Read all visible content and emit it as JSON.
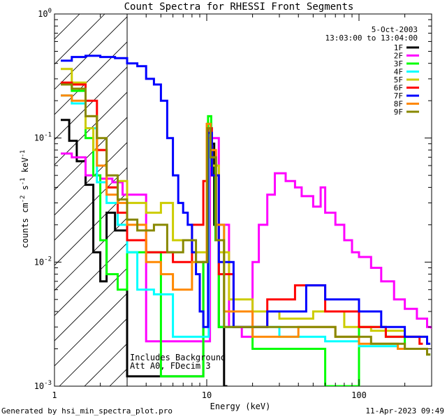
{
  "chart_data": {
    "type": "line",
    "title": "Count Spectra for RHESSI Front Segments",
    "xlabel": "Energy (keV)",
    "ylabel": "counts cm-2 s-1 keV-1",
    "xscale": "log",
    "yscale": "log",
    "xlim": [
      1,
      300
    ],
    "ylim": [
      0.001,
      1
    ],
    "x_ticks": [
      {
        "value": 1,
        "label": "1"
      },
      {
        "value": 10,
        "label": "10"
      },
      {
        "value": 100,
        "label": "100"
      }
    ],
    "y_ticks": [
      {
        "value": 1,
        "base": "10",
        "exp": "0"
      },
      {
        "value": 0.1,
        "base": "10",
        "exp": "-1"
      },
      {
        "value": 0.01,
        "base": "10",
        "exp": "-2"
      },
      {
        "value": 0.001,
        "base": "10",
        "exp": "-3"
      }
    ],
    "hatched_region_keV": [
      1,
      3
    ],
    "date": "5-Oct-2003",
    "time_range": "13:03:00 to 13:04:00",
    "annotations": [
      "Includes Background",
      "Att A0, FDecim 3"
    ],
    "series": [
      {
        "name": "1F",
        "color": "#000000",
        "points": [
          [
            1.1,
            0.14
          ],
          [
            1.25,
            0.095
          ],
          [
            1.4,
            0.065
          ],
          [
            1.6,
            0.042
          ],
          [
            1.8,
            0.012
          ],
          [
            2.0,
            0.007
          ],
          [
            2.2,
            0.025
          ],
          [
            2.5,
            0.018
          ],
          [
            3.0,
            0.0012
          ],
          [
            9.5,
            0.01
          ],
          [
            10.1,
            0.13
          ],
          [
            10.6,
            0.09
          ],
          [
            11.2,
            0.02
          ],
          [
            12.0,
            0.003
          ],
          [
            13,
            0.001
          ]
        ]
      },
      {
        "name": "2F",
        "color": "#ff00ff",
        "points": [
          [
            1.1,
            0.075
          ],
          [
            1.3,
            0.07
          ],
          [
            1.6,
            0.05
          ],
          [
            2.0,
            0.047
          ],
          [
            2.4,
            0.044
          ],
          [
            2.8,
            0.035
          ],
          [
            4,
            0.0023
          ],
          [
            10.5,
            0.1
          ],
          [
            12,
            0.02
          ],
          [
            14,
            0.003
          ],
          [
            17,
            0.0025
          ],
          [
            20,
            0.01
          ],
          [
            22,
            0.02
          ],
          [
            25,
            0.035
          ],
          [
            28,
            0.052
          ],
          [
            33,
            0.045
          ],
          [
            38,
            0.04
          ],
          [
            42,
            0.034
          ],
          [
            50,
            0.028
          ],
          [
            56,
            0.04
          ],
          [
            60,
            0.025
          ],
          [
            70,
            0.02
          ],
          [
            80,
            0.015
          ],
          [
            90,
            0.012
          ],
          [
            100,
            0.011
          ],
          [
            120,
            0.009
          ],
          [
            140,
            0.007
          ],
          [
            170,
            0.005
          ],
          [
            200,
            0.0042
          ],
          [
            240,
            0.0035
          ],
          [
            280,
            0.003
          ],
          [
            300,
            0.0029
          ]
        ]
      },
      {
        "name": "3F",
        "color": "#00ff00",
        "points": [
          [
            1.1,
            0.27
          ],
          [
            1.3,
            0.24
          ],
          [
            1.6,
            0.1
          ],
          [
            1.8,
            0.05
          ],
          [
            2.0,
            0.015
          ],
          [
            2.2,
            0.008
          ],
          [
            2.6,
            0.006
          ],
          [
            3.0,
            0.012
          ],
          [
            5.0,
            0.0012
          ],
          [
            9.5,
            0.01
          ],
          [
            10.2,
            0.15
          ],
          [
            10.7,
            0.06
          ],
          [
            11.4,
            0.015
          ],
          [
            12,
            0.003
          ],
          [
            20,
            0.002
          ],
          [
            40,
            0.002
          ],
          [
            60,
            0.001
          ],
          [
            100,
            0.003
          ],
          [
            150,
            0.0025
          ],
          [
            200,
            0.002
          ],
          [
            280,
            0.0018
          ]
        ]
      },
      {
        "name": "4F",
        "color": "#00ffff",
        "points": [
          [
            1.1,
            0.22
          ],
          [
            1.3,
            0.19
          ],
          [
            1.6,
            0.12
          ],
          [
            1.9,
            0.044
          ],
          [
            2.2,
            0.03
          ],
          [
            2.6,
            0.02
          ],
          [
            3.0,
            0.012
          ],
          [
            3.5,
            0.006
          ],
          [
            4.5,
            0.0055
          ],
          [
            6,
            0.0025
          ],
          [
            10.3,
            0.12
          ],
          [
            10.8,
            0.07
          ],
          [
            11.5,
            0.02
          ],
          [
            13,
            0.003
          ],
          [
            30,
            0.0025
          ],
          [
            60,
            0.0023
          ],
          [
            100,
            0.0021
          ],
          [
            180,
            0.002
          ],
          [
            280,
            0.0018
          ]
        ]
      },
      {
        "name": "5F",
        "color": "#cccc00",
        "points": [
          [
            1.1,
            0.36
          ],
          [
            1.3,
            0.28
          ],
          [
            1.6,
            0.12
          ],
          [
            1.8,
            0.08
          ],
          [
            2.2,
            0.04
          ],
          [
            2.6,
            0.045
          ],
          [
            3.0,
            0.03
          ],
          [
            4,
            0.025
          ],
          [
            5,
            0.03
          ],
          [
            6,
            0.015
          ],
          [
            8,
            0.012
          ],
          [
            10.2,
            0.1
          ],
          [
            10.8,
            0.06
          ],
          [
            12,
            0.012
          ],
          [
            14,
            0.005
          ],
          [
            20,
            0.004
          ],
          [
            30,
            0.0035
          ],
          [
            50,
            0.004
          ],
          [
            80,
            0.003
          ],
          [
            120,
            0.0028
          ],
          [
            200,
            0.0025
          ],
          [
            280,
            0.0022
          ]
        ]
      },
      {
        "name": "6F",
        "color": "#ff0000",
        "points": [
          [
            1.1,
            0.28
          ],
          [
            1.3,
            0.27
          ],
          [
            1.6,
            0.2
          ],
          [
            1.9,
            0.08
          ],
          [
            2.2,
            0.04
          ],
          [
            2.6,
            0.025
          ],
          [
            3.0,
            0.015
          ],
          [
            4,
            0.012
          ],
          [
            6,
            0.01
          ],
          [
            8,
            0.02
          ],
          [
            9.5,
            0.045
          ],
          [
            10.2,
            0.12
          ],
          [
            10.8,
            0.05
          ],
          [
            12,
            0.008
          ],
          [
            15,
            0.003
          ],
          [
            25,
            0.005
          ],
          [
            38,
            0.0065
          ],
          [
            60,
            0.004
          ],
          [
            100,
            0.003
          ],
          [
            150,
            0.0025
          ],
          [
            250,
            0.0022
          ]
        ]
      },
      {
        "name": "7F",
        "color": "#0000ff",
        "points": [
          [
            1.1,
            0.42
          ],
          [
            1.3,
            0.45
          ],
          [
            1.6,
            0.46
          ],
          [
            2.0,
            0.45
          ],
          [
            2.5,
            0.44
          ],
          [
            3.0,
            0.4
          ],
          [
            3.5,
            0.38
          ],
          [
            4.0,
            0.3
          ],
          [
            4.5,
            0.27
          ],
          [
            5.0,
            0.2
          ],
          [
            5.5,
            0.1
          ],
          [
            6,
            0.05
          ],
          [
            6.5,
            0.03
          ],
          [
            7,
            0.025
          ],
          [
            7.5,
            0.02
          ],
          [
            8,
            0.012
          ],
          [
            8.5,
            0.008
          ],
          [
            9,
            0.004
          ],
          [
            9.5,
            0.003
          ],
          [
            10.2,
            0.11
          ],
          [
            10.8,
            0.05
          ],
          [
            12,
            0.01
          ],
          [
            15,
            0.003
          ],
          [
            25,
            0.004
          ],
          [
            45,
            0.0065
          ],
          [
            60,
            0.005
          ],
          [
            100,
            0.004
          ],
          [
            140,
            0.003
          ],
          [
            200,
            0.0025
          ],
          [
            280,
            0.0022
          ]
        ]
      },
      {
        "name": "8F",
        "color": "#ff8800",
        "points": [
          [
            1.1,
            0.22
          ],
          [
            1.3,
            0.2
          ],
          [
            1.6,
            0.15
          ],
          [
            1.9,
            0.06
          ],
          [
            2.2,
            0.035
          ],
          [
            2.6,
            0.03
          ],
          [
            3.0,
            0.02
          ],
          [
            4,
            0.01
          ],
          [
            5,
            0.008
          ],
          [
            6,
            0.006
          ],
          [
            8,
            0.01
          ],
          [
            10,
            0.13
          ],
          [
            10.6,
            0.08
          ],
          [
            11.5,
            0.02
          ],
          [
            13,
            0.004
          ],
          [
            20,
            0.0025
          ],
          [
            40,
            0.003
          ],
          [
            70,
            0.0025
          ],
          [
            100,
            0.0022
          ],
          [
            180,
            0.002
          ],
          [
            280,
            0.0018
          ]
        ]
      },
      {
        "name": "9F",
        "color": "#888800",
        "points": [
          [
            1.1,
            0.27
          ],
          [
            1.3,
            0.25
          ],
          [
            1.6,
            0.15
          ],
          [
            1.9,
            0.1
          ],
          [
            2.2,
            0.05
          ],
          [
            2.6,
            0.032
          ],
          [
            3.0,
            0.022
          ],
          [
            3.5,
            0.018
          ],
          [
            4.5,
            0.02
          ],
          [
            5.5,
            0.012
          ],
          [
            7,
            0.015
          ],
          [
            8.5,
            0.01
          ],
          [
            10.1,
            0.12
          ],
          [
            10.6,
            0.07
          ],
          [
            11.5,
            0.015
          ],
          [
            13,
            0.003
          ],
          [
            20,
            0.003
          ],
          [
            40,
            0.003
          ],
          [
            70,
            0.0025
          ],
          [
            120,
            0.0022
          ],
          [
            200,
            0.002
          ],
          [
            280,
            0.0018
          ]
        ]
      }
    ]
  },
  "footer": {
    "left": "Generated by hsi_min_spectra_plot.pro",
    "right": "11-Apr-2023 09:49"
  }
}
